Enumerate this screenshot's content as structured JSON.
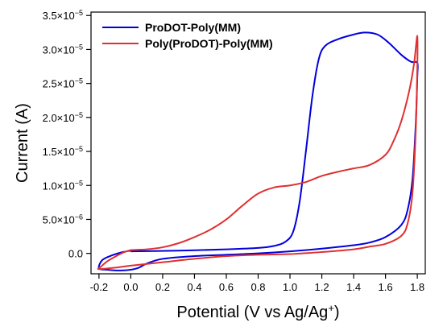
{
  "chart_data": {
    "type": "line",
    "title": "",
    "xlabel": "Potential (V vs Ag/Ag",
    "xlabel_superscript": "+",
    "xlabel_suffix": ")",
    "ylabel": "Current (A)",
    "xlim": [
      -0.25,
      1.85
    ],
    "ylim": [
      -3e-06,
      3.55e-05
    ],
    "x_ticks": [
      {
        "value": -0.2,
        "label": "-0.2"
      },
      {
        "value": 0.0,
        "label": "0.0"
      },
      {
        "value": 0.2,
        "label": "0.2"
      },
      {
        "value": 0.4,
        "label": "0.4"
      },
      {
        "value": 0.6,
        "label": "0.6"
      },
      {
        "value": 0.8,
        "label": "0.8"
      },
      {
        "value": 1.0,
        "label": "1.0"
      },
      {
        "value": 1.2,
        "label": "1.2"
      },
      {
        "value": 1.4,
        "label": "1.4"
      },
      {
        "value": 1.6,
        "label": "1.6"
      },
      {
        "value": 1.8,
        "label": "1.8"
      }
    ],
    "y_ticks": [
      {
        "value": 0,
        "mant": "0.0",
        "exp": ""
      },
      {
        "value": 5e-06,
        "mant": "5.0×10",
        "exp": "−6"
      },
      {
        "value": 1e-05,
        "mant": "1.0×10",
        "exp": "−5"
      },
      {
        "value": 1.5e-05,
        "mant": "1.5×10",
        "exp": "−5"
      },
      {
        "value": 2e-05,
        "mant": "2.0×10",
        "exp": "−5"
      },
      {
        "value": 2.5e-05,
        "mant": "2.5×10",
        "exp": "−5"
      },
      {
        "value": 3e-05,
        "mant": "3.0×10",
        "exp": "−5"
      },
      {
        "value": 3.5e-05,
        "mant": "3.5×10",
        "exp": "−5"
      }
    ],
    "grid": false,
    "legend_position": "top-left",
    "series": [
      {
        "name": "ProDOT-Poly(MM)",
        "color": "#0000dd",
        "x": [
          0.0,
          0.3,
          0.6,
          0.8,
          0.9,
          0.97,
          1.02,
          1.06,
          1.1,
          1.14,
          1.18,
          1.22,
          1.3,
          1.4,
          1.47,
          1.55,
          1.62,
          1.7,
          1.76,
          1.8,
          1.8,
          1.79,
          1.77,
          1.74,
          1.7,
          1.6,
          1.5,
          1.4,
          1.2,
          1.0,
          0.8,
          0.6,
          0.4,
          0.2,
          0.1,
          0.05,
          0.0,
          -0.05,
          -0.1,
          -0.15,
          -0.2,
          -0.18,
          -0.12,
          -0.05,
          0.0
        ],
        "y": [
          3e-07,
          4e-07,
          6e-07,
          8e-07,
          1.1e-06,
          1.7e-06,
          3.2e-06,
          7.5e-06,
          1.5e-05,
          2.3e-05,
          2.85e-05,
          3.05e-05,
          3.15e-05,
          3.22e-05,
          3.25e-05,
          3.22e-05,
          3.1e-05,
          2.92e-05,
          2.82e-05,
          2.8e-05,
          2.6e-05,
          1.9e-05,
          1.1e-05,
          6.5e-06,
          4.2e-06,
          2.4e-06,
          1.6e-06,
          1.2e-06,
          7e-07,
          3e-07,
          0.0,
          -2e-07,
          -4e-07,
          -8e-07,
          -1.5e-06,
          -2.1e-06,
          -2.4e-06,
          -2.5e-06,
          -2.5e-06,
          -2.4e-06,
          -2.2e-06,
          -1e-06,
          -3e-07,
          2e-07,
          4e-07
        ]
      },
      {
        "name": "Poly(ProDOT)-Poly(MM)",
        "color": "#e03030",
        "x": [
          0.0,
          0.1,
          0.2,
          0.3,
          0.4,
          0.5,
          0.6,
          0.7,
          0.8,
          0.9,
          1.0,
          1.1,
          1.2,
          1.3,
          1.4,
          1.5,
          1.6,
          1.65,
          1.7,
          1.75,
          1.78,
          1.8,
          1.8,
          1.79,
          1.77,
          1.74,
          1.7,
          1.6,
          1.5,
          1.4,
          1.2,
          1.0,
          0.8,
          0.6,
          0.4,
          0.2,
          0.0,
          -0.1,
          -0.2,
          -0.19,
          -0.15,
          -0.1,
          -0.05,
          0.0
        ],
        "y": [
          5e-07,
          6e-07,
          9e-07,
          1.5e-06,
          2.4e-06,
          3.5e-06,
          5e-06,
          7e-06,
          8.8e-06,
          9.7e-06,
          1e-05,
          1.05e-05,
          1.14e-05,
          1.2e-05,
          1.25e-05,
          1.3e-05,
          1.45e-05,
          1.65e-05,
          1.95e-05,
          2.4e-05,
          2.8e-05,
          3.2e-05,
          2.75e-05,
          1.8e-05,
          9e-06,
          4.5e-06,
          2.6e-06,
          1.4e-06,
          1e-06,
          6e-07,
          2e-07,
          -1e-07,
          -2e-07,
          -4e-07,
          -8e-07,
          -1.3e-06,
          -1.8e-06,
          -2.1e-06,
          -2.3e-06,
          -2e-06,
          -1.2e-06,
          -5e-07,
          1e-07,
          5e-07
        ]
      }
    ]
  }
}
